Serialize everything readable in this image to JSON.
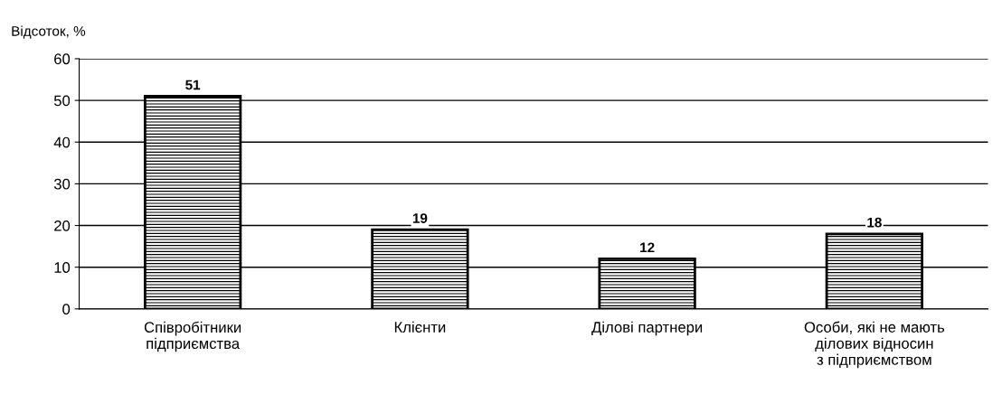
{
  "chart_data": {
    "type": "bar",
    "ylabel": "Відсоток, %",
    "categories": [
      "Співробітники\nпідприємства",
      "Клієнти",
      "Ділові партнери",
      "Особи, які не мають\nділових відносин\nз підприємством"
    ],
    "values": [
      51,
      19,
      12,
      18
    ],
    "color": "#000000",
    "ylim": [
      0,
      60
    ],
    "yticks": [
      0,
      10,
      20,
      30,
      40,
      50,
      60
    ],
    "grid": "y",
    "data_labels": true
  }
}
